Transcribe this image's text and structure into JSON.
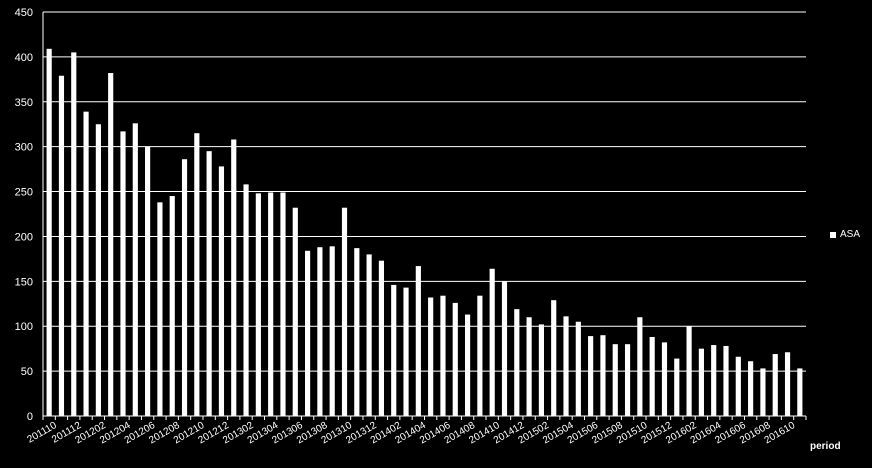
{
  "chart_data": {
    "type": "bar",
    "title": "",
    "xlabel": "period",
    "ylabel": "",
    "ylim": [
      0,
      450
    ],
    "yticks": [
      0,
      50,
      100,
      150,
      200,
      250,
      300,
      350,
      400,
      450
    ],
    "grid": true,
    "legend_position": "right",
    "colors": {
      "background": "#000000",
      "bar": "#ffffff",
      "grid": "#ffffff",
      "text": "#ffffff"
    },
    "categories": [
      "201110",
      "201111",
      "201112",
      "201201",
      "201202",
      "201203",
      "201204",
      "201205",
      "201206",
      "201207",
      "201208",
      "201209",
      "201210",
      "201211",
      "201212",
      "201301",
      "201302",
      "201303",
      "201304",
      "201305",
      "201306",
      "201307",
      "201308",
      "201309",
      "201310",
      "201311",
      "201312",
      "201401",
      "201402",
      "201403",
      "201404",
      "201405",
      "201406",
      "201407",
      "201408",
      "201409",
      "201410",
      "201411",
      "201412",
      "201501",
      "201502",
      "201503",
      "201504",
      "201505",
      "201506",
      "201507",
      "201508",
      "201509",
      "201510",
      "201511",
      "201512",
      "201601",
      "201602",
      "201603",
      "201604",
      "201605",
      "201606",
      "201607",
      "201608",
      "201609",
      "201610",
      "201611"
    ],
    "tick_labels": [
      "201110",
      "201112",
      "201202",
      "201204",
      "201206",
      "201208",
      "201210",
      "201212",
      "201302",
      "201304",
      "201306",
      "201308",
      "201310",
      "201312",
      "201402",
      "201404",
      "201406",
      "201408",
      "201410",
      "201412",
      "201502",
      "201504",
      "201506",
      "201508",
      "201510",
      "201512",
      "201602",
      "201604",
      "201606",
      "201608",
      "201610"
    ],
    "series": [
      {
        "name": "ASA",
        "values": [
          409,
          379,
          405,
          339,
          325,
          382,
          317,
          326,
          300,
          238,
          245,
          286,
          315,
          295,
          278,
          308,
          258,
          248,
          249,
          249,
          232,
          184,
          188,
          189,
          232,
          187,
          180,
          173,
          146,
          143,
          167,
          132,
          134,
          126,
          113,
          134,
          164,
          150,
          119,
          110,
          102,
          129,
          111,
          105,
          89,
          90,
          80,
          80,
          110,
          88,
          82,
          64,
          100,
          75,
          79,
          78,
          66,
          61,
          53,
          69,
          71,
          53
        ]
      }
    ]
  }
}
